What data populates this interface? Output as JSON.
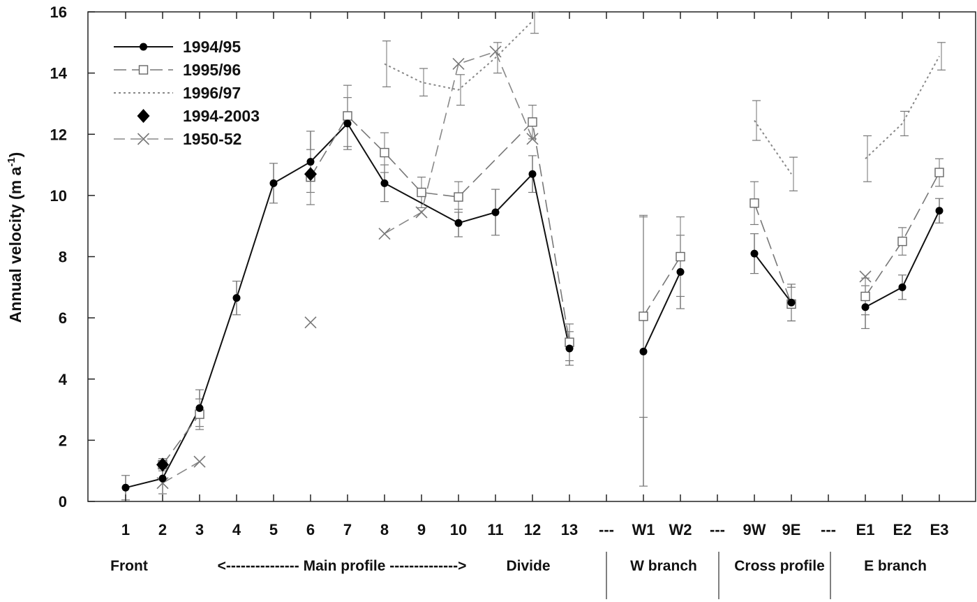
{
  "chart_data": {
    "type": "line",
    "title": "",
    "ylabel": "Annual velocity (m a⁻¹)",
    "ylabel_parts": {
      "main": "Annual velocity (m a",
      "sup": "-1",
      "close": ")"
    },
    "xlabel": "",
    "ylim": [
      0,
      16
    ],
    "yticks": [
      0,
      2,
      4,
      6,
      8,
      10,
      12,
      14,
      16
    ],
    "grid": false,
    "legend_position": "top-left",
    "categories": [
      "1",
      "2",
      "3",
      "4",
      "5",
      "6",
      "7",
      "8",
      "9",
      "10",
      "11",
      "12",
      "13",
      "---",
      "W1",
      "W2",
      "---",
      "9W",
      "9E",
      "---",
      "E1",
      "E2",
      "E3"
    ],
    "groups": [
      {
        "label": "Front"
      },
      {
        "label": "<--------------- Main profile -------------->"
      },
      {
        "label": "Divide"
      },
      {
        "label": "W branch"
      },
      {
        "label": "Cross profile"
      },
      {
        "label": "E branch"
      }
    ],
    "series": [
      {
        "name": "1994/95",
        "style": "solid-filled-circle",
        "color": "#111111",
        "segments": [
          [
            0,
            12
          ],
          [
            14,
            15
          ],
          [
            17,
            18
          ],
          [
            20,
            22
          ]
        ],
        "values": [
          0.45,
          0.75,
          3.05,
          6.65,
          10.4,
          11.1,
          12.35,
          10.4,
          null,
          9.1,
          9.45,
          10.7,
          5.0,
          null,
          4.9,
          7.5,
          null,
          8.1,
          6.5,
          null,
          6.35,
          7.0,
          9.5
        ],
        "error": [
          0.4,
          0.5,
          0.6,
          0.55,
          0.65,
          1.0,
          0.85,
          0.6,
          null,
          0.45,
          0.75,
          0.6,
          0.55,
          null,
          4.4,
          1.2,
          null,
          0.65,
          0.6,
          null,
          0.7,
          0.4,
          0.4
        ]
      },
      {
        "name": "1995/96",
        "style": "dashed-open-square",
        "color": "#777777",
        "segments": [
          [
            1,
            2
          ],
          [
            5,
            12
          ],
          [
            14,
            15
          ],
          [
            17,
            18
          ],
          [
            20,
            22
          ]
        ],
        "values": [
          null,
          1.2,
          2.85,
          null,
          null,
          10.6,
          12.6,
          11.4,
          10.1,
          9.95,
          null,
          12.4,
          5.2,
          null,
          6.05,
          8.0,
          null,
          9.75,
          6.45,
          null,
          6.7,
          8.5,
          10.75
        ],
        "error": [
          null,
          0.2,
          0.5,
          null,
          null,
          0.9,
          1.0,
          0.65,
          0.5,
          0.5,
          null,
          0.55,
          0.6,
          null,
          3.3,
          1.3,
          null,
          0.7,
          0.55,
          null,
          0.6,
          0.45,
          0.45
        ]
      },
      {
        "name": "1996/97",
        "style": "dotted",
        "color": "#888888",
        "segments": [
          [
            7,
            12
          ],
          [
            17,
            18
          ],
          [
            20,
            22
          ]
        ],
        "values": [
          null,
          null,
          null,
          null,
          null,
          null,
          null,
          14.3,
          13.7,
          13.45,
          14.5,
          15.7,
          null,
          null,
          null,
          null,
          null,
          12.45,
          10.7,
          null,
          11.2,
          12.35,
          14.55
        ],
        "error": [
          null,
          null,
          null,
          null,
          null,
          null,
          null,
          0.75,
          0.45,
          0.5,
          0.5,
          0.4,
          null,
          null,
          null,
          null,
          null,
          0.65,
          0.55,
          null,
          0.75,
          0.4,
          0.45
        ]
      },
      {
        "name": "1994-2003",
        "style": "filled-diamond",
        "color": "#000000",
        "segments": [],
        "values": [
          null,
          1.2,
          null,
          null,
          null,
          10.7,
          null,
          null,
          null,
          null,
          null,
          null,
          null,
          null,
          null,
          null,
          null,
          null,
          null,
          null,
          null,
          null,
          null
        ]
      },
      {
        "name": "1950-52",
        "style": "dashed-cross",
        "color": "#888888",
        "segments": [
          [
            1,
            2
          ],
          [
            7,
            12
          ],
          [
            20,
            22
          ]
        ],
        "values": [
          null,
          0.6,
          1.3,
          null,
          null,
          5.85,
          null,
          8.75,
          9.45,
          14.3,
          14.7,
          11.85,
          null,
          null,
          null,
          null,
          null,
          null,
          null,
          null,
          7.35,
          null,
          null
        ]
      }
    ]
  }
}
